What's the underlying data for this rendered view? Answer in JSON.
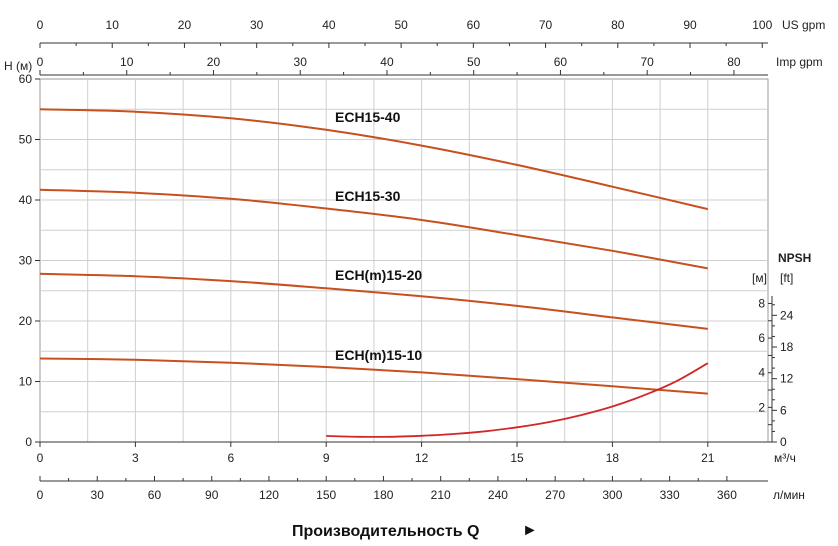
{
  "chart_data": {
    "type": "line",
    "x_axis_bottom": {
      "unit": "м³/ч",
      "ticks": [
        0,
        3,
        6,
        9,
        12,
        15,
        18,
        21
      ],
      "range": [
        0,
        22
      ]
    },
    "x_axis_lpm": {
      "unit": "л/мин",
      "ticks": [
        0,
        30,
        60,
        90,
        120,
        150,
        180,
        210,
        240,
        270,
        300,
        330,
        360
      ]
    },
    "x_axis_us_gpm": {
      "unit": "US gpm",
      "ticks": [
        0,
        10,
        20,
        30,
        40,
        50,
        60,
        70,
        80,
        90,
        100
      ]
    },
    "x_axis_imp_gpm": {
      "unit": "Imp gpm",
      "ticks": [
        0,
        10,
        20,
        30,
        40,
        50,
        60,
        70,
        80
      ]
    },
    "y_axis_left": {
      "label": "H (м)",
      "ticks": [
        0,
        10,
        20,
        30,
        40,
        50,
        60
      ],
      "range": [
        0,
        60
      ]
    },
    "y_axis_npsh": {
      "title": "NPSH",
      "unit_m": "[м]",
      "unit_ft": "[ft]",
      "ticks_m": [
        2,
        4,
        6,
        8
      ],
      "ticks_ft": [
        6,
        12,
        18,
        24
      ],
      "range_m": [
        0,
        8.2
      ]
    },
    "xlabel": "Производительность Q",
    "xlabel_arrow": "►",
    "series": [
      {
        "name": "ECH15-40",
        "color": "#c8501e",
        "x": [
          0,
          3,
          6,
          9,
          12,
          15,
          18,
          21
        ],
        "y": [
          55,
          54.6,
          53.5,
          51.6,
          49,
          45.8,
          42.2,
          38.5
        ]
      },
      {
        "name": "ECH15-30",
        "color": "#c8501e",
        "x": [
          0,
          3,
          6,
          9,
          12,
          15,
          18,
          21
        ],
        "y": [
          41.7,
          41.2,
          40.2,
          38.6,
          36.7,
          34.2,
          31.6,
          28.7
        ]
      },
      {
        "name": "ECH(m)15-20",
        "color": "#c8501e",
        "x": [
          0,
          3,
          6,
          9,
          12,
          15,
          18,
          21
        ],
        "y": [
          27.8,
          27.4,
          26.6,
          25.4,
          24.1,
          22.5,
          20.6,
          18.7
        ]
      },
      {
        "name": "ECH(m)15-10",
        "color": "#c8501e",
        "x": [
          0,
          3,
          6,
          9,
          12,
          15,
          18,
          21
        ],
        "y": [
          13.8,
          13.6,
          13.1,
          12.4,
          11.5,
          10.4,
          9.2,
          8.0
        ]
      },
      {
        "name": "NPSH",
        "color": "#d02828",
        "axis": "npsh",
        "x": [
          9,
          10,
          11,
          12,
          13,
          14,
          15,
          16,
          17,
          18,
          19,
          20,
          21
        ],
        "y": [
          0.35,
          0.3,
          0.3,
          0.36,
          0.46,
          0.62,
          0.85,
          1.15,
          1.55,
          2.05,
          2.7,
          3.5,
          4.55
        ]
      }
    ],
    "grid": true
  }
}
